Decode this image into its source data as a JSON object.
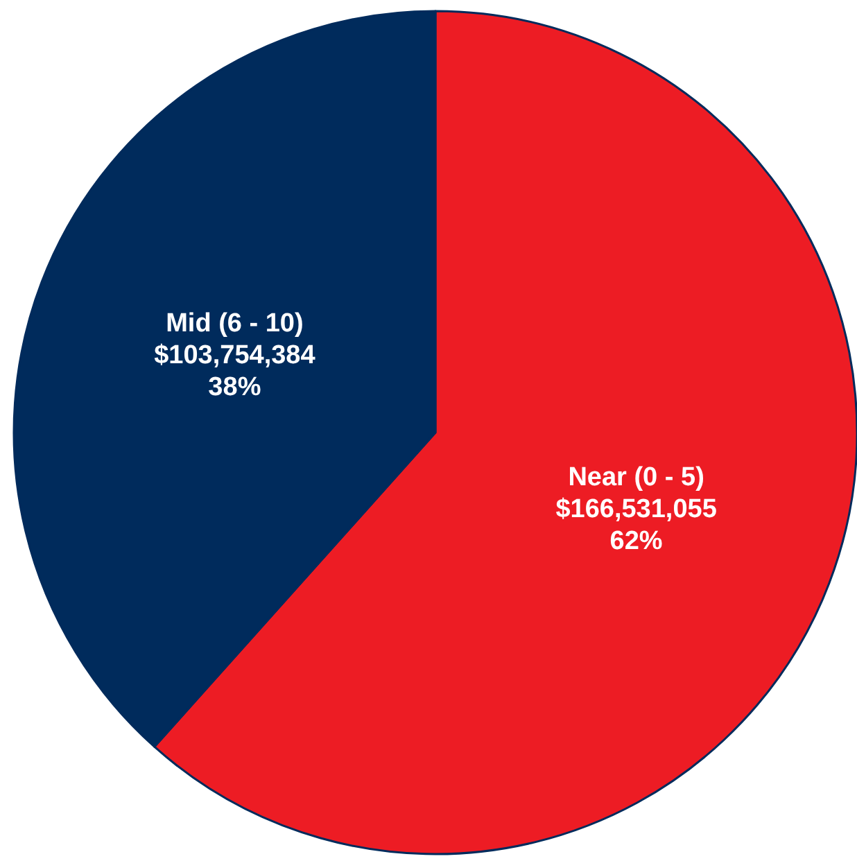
{
  "chart_data": {
    "type": "pie",
    "categories": [
      "Near (0 - 5)",
      "Mid (6 - 10)"
    ],
    "values": [
      166531055,
      103754384
    ],
    "value_labels": [
      "$166,531,055\n62%",
      "$103,754,384\n38%"
    ],
    "colors": [
      "#ed1c24",
      "#002b5c"
    ],
    "legend": false
  }
}
